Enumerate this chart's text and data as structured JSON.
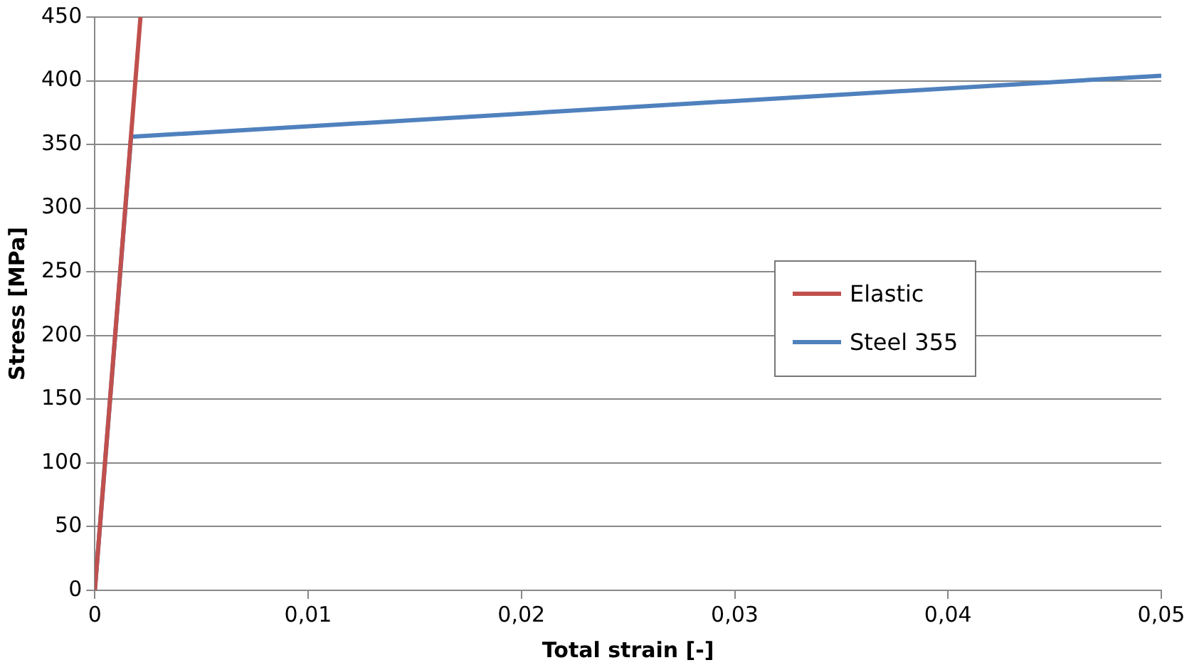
{
  "chart_data": {
    "type": "line",
    "xlabel": "Total strain [-]",
    "ylabel": "Stress [MPa]",
    "series": [
      {
        "name": "Elastic",
        "color": "#c0504d",
        "x": [
          0,
          0.00214
        ],
        "values": [
          0,
          450
        ]
      },
      {
        "name": "Steel 355",
        "color": "#4f81bd",
        "x": [
          0,
          0.0017,
          0.05
        ],
        "values": [
          0,
          356,
          404
        ]
      }
    ],
    "xlim": [
      0,
      0.05
    ],
    "ylim": [
      0,
      450
    ],
    "xticks": [
      0,
      {
        "value": 0.01,
        "label": "0,01"
      },
      {
        "value": 0.02,
        "label": "0,02"
      },
      {
        "value": 0.03,
        "label": "0,03"
      },
      {
        "value": 0.04,
        "label": "0,04"
      },
      {
        "value": 0.05,
        "label": "0,05"
      }
    ],
    "yticks": [
      0,
      50,
      100,
      150,
      200,
      250,
      300,
      350,
      400,
      450
    ],
    "grid": "y",
    "legend": "right",
    "marker": "none",
    "line_style": "solid"
  }
}
